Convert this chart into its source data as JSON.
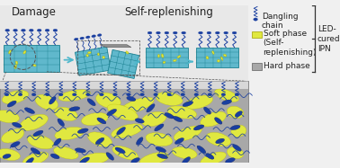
{
  "bg_color": "#f0f0f0",
  "soft_phase_color": "#e0e840",
  "hard_phase_color": "#a8a8a8",
  "dangling_chain_color": "#1a3fa0",
  "blue_ellipse_color": "#1a3fa0",
  "coating_color": "#60b8cc",
  "grid_color": "#1a8090",
  "arrow_color": "#50b8cc",
  "title_damage": "Damage",
  "title_self": "Self-replenishing",
  "label_dangling": "Dangling\nchain",
  "label_soft": "Soft phase\n(Self-\nreplenishing)",
  "label_hard": "Hard phase",
  "label_led": "LED-\ncured\nIPN",
  "font_size_title": 8.5,
  "font_size_label": 6.5
}
